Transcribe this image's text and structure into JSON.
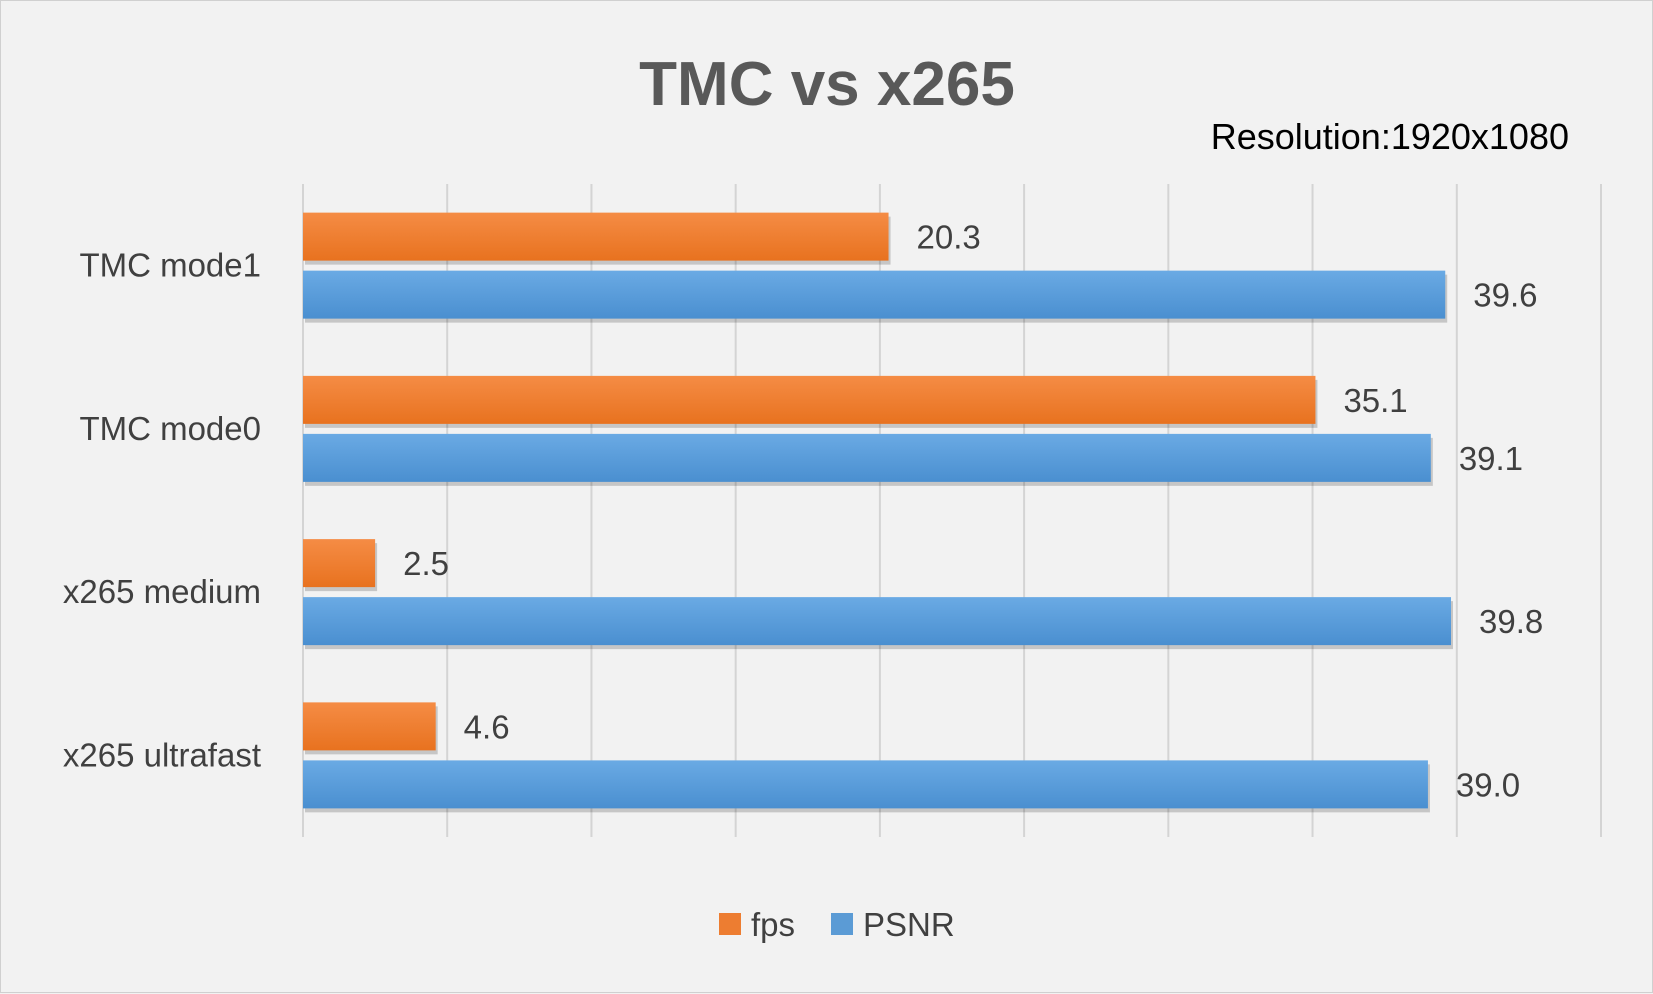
{
  "chart_data": {
    "type": "bar",
    "orientation": "horizontal",
    "title": "TMC vs x265",
    "subtitle": "Resolution:1920x1080",
    "categories": [
      "TMC mode1",
      "TMC mode0",
      "x265 medium",
      "x265 ultrafast"
    ],
    "series": [
      {
        "name": "fps",
        "color": "#ed7d31",
        "values": [
          20.3,
          35.1,
          2.5,
          4.6
        ],
        "labels": [
          "20.3",
          "35.1",
          "2.5",
          "4.6"
        ]
      },
      {
        "name": "PSNR",
        "color": "#5b9bd5",
        "values": [
          39.6,
          39.1,
          39.8,
          39.0
        ],
        "labels": [
          "39.6",
          "39.1",
          "39.8",
          "39.0"
        ]
      }
    ],
    "xlim": [
      0,
      45
    ],
    "x_gridline_step": 5,
    "grid": true,
    "legend_position": "bottom",
    "xlabel": "",
    "ylabel": ""
  }
}
